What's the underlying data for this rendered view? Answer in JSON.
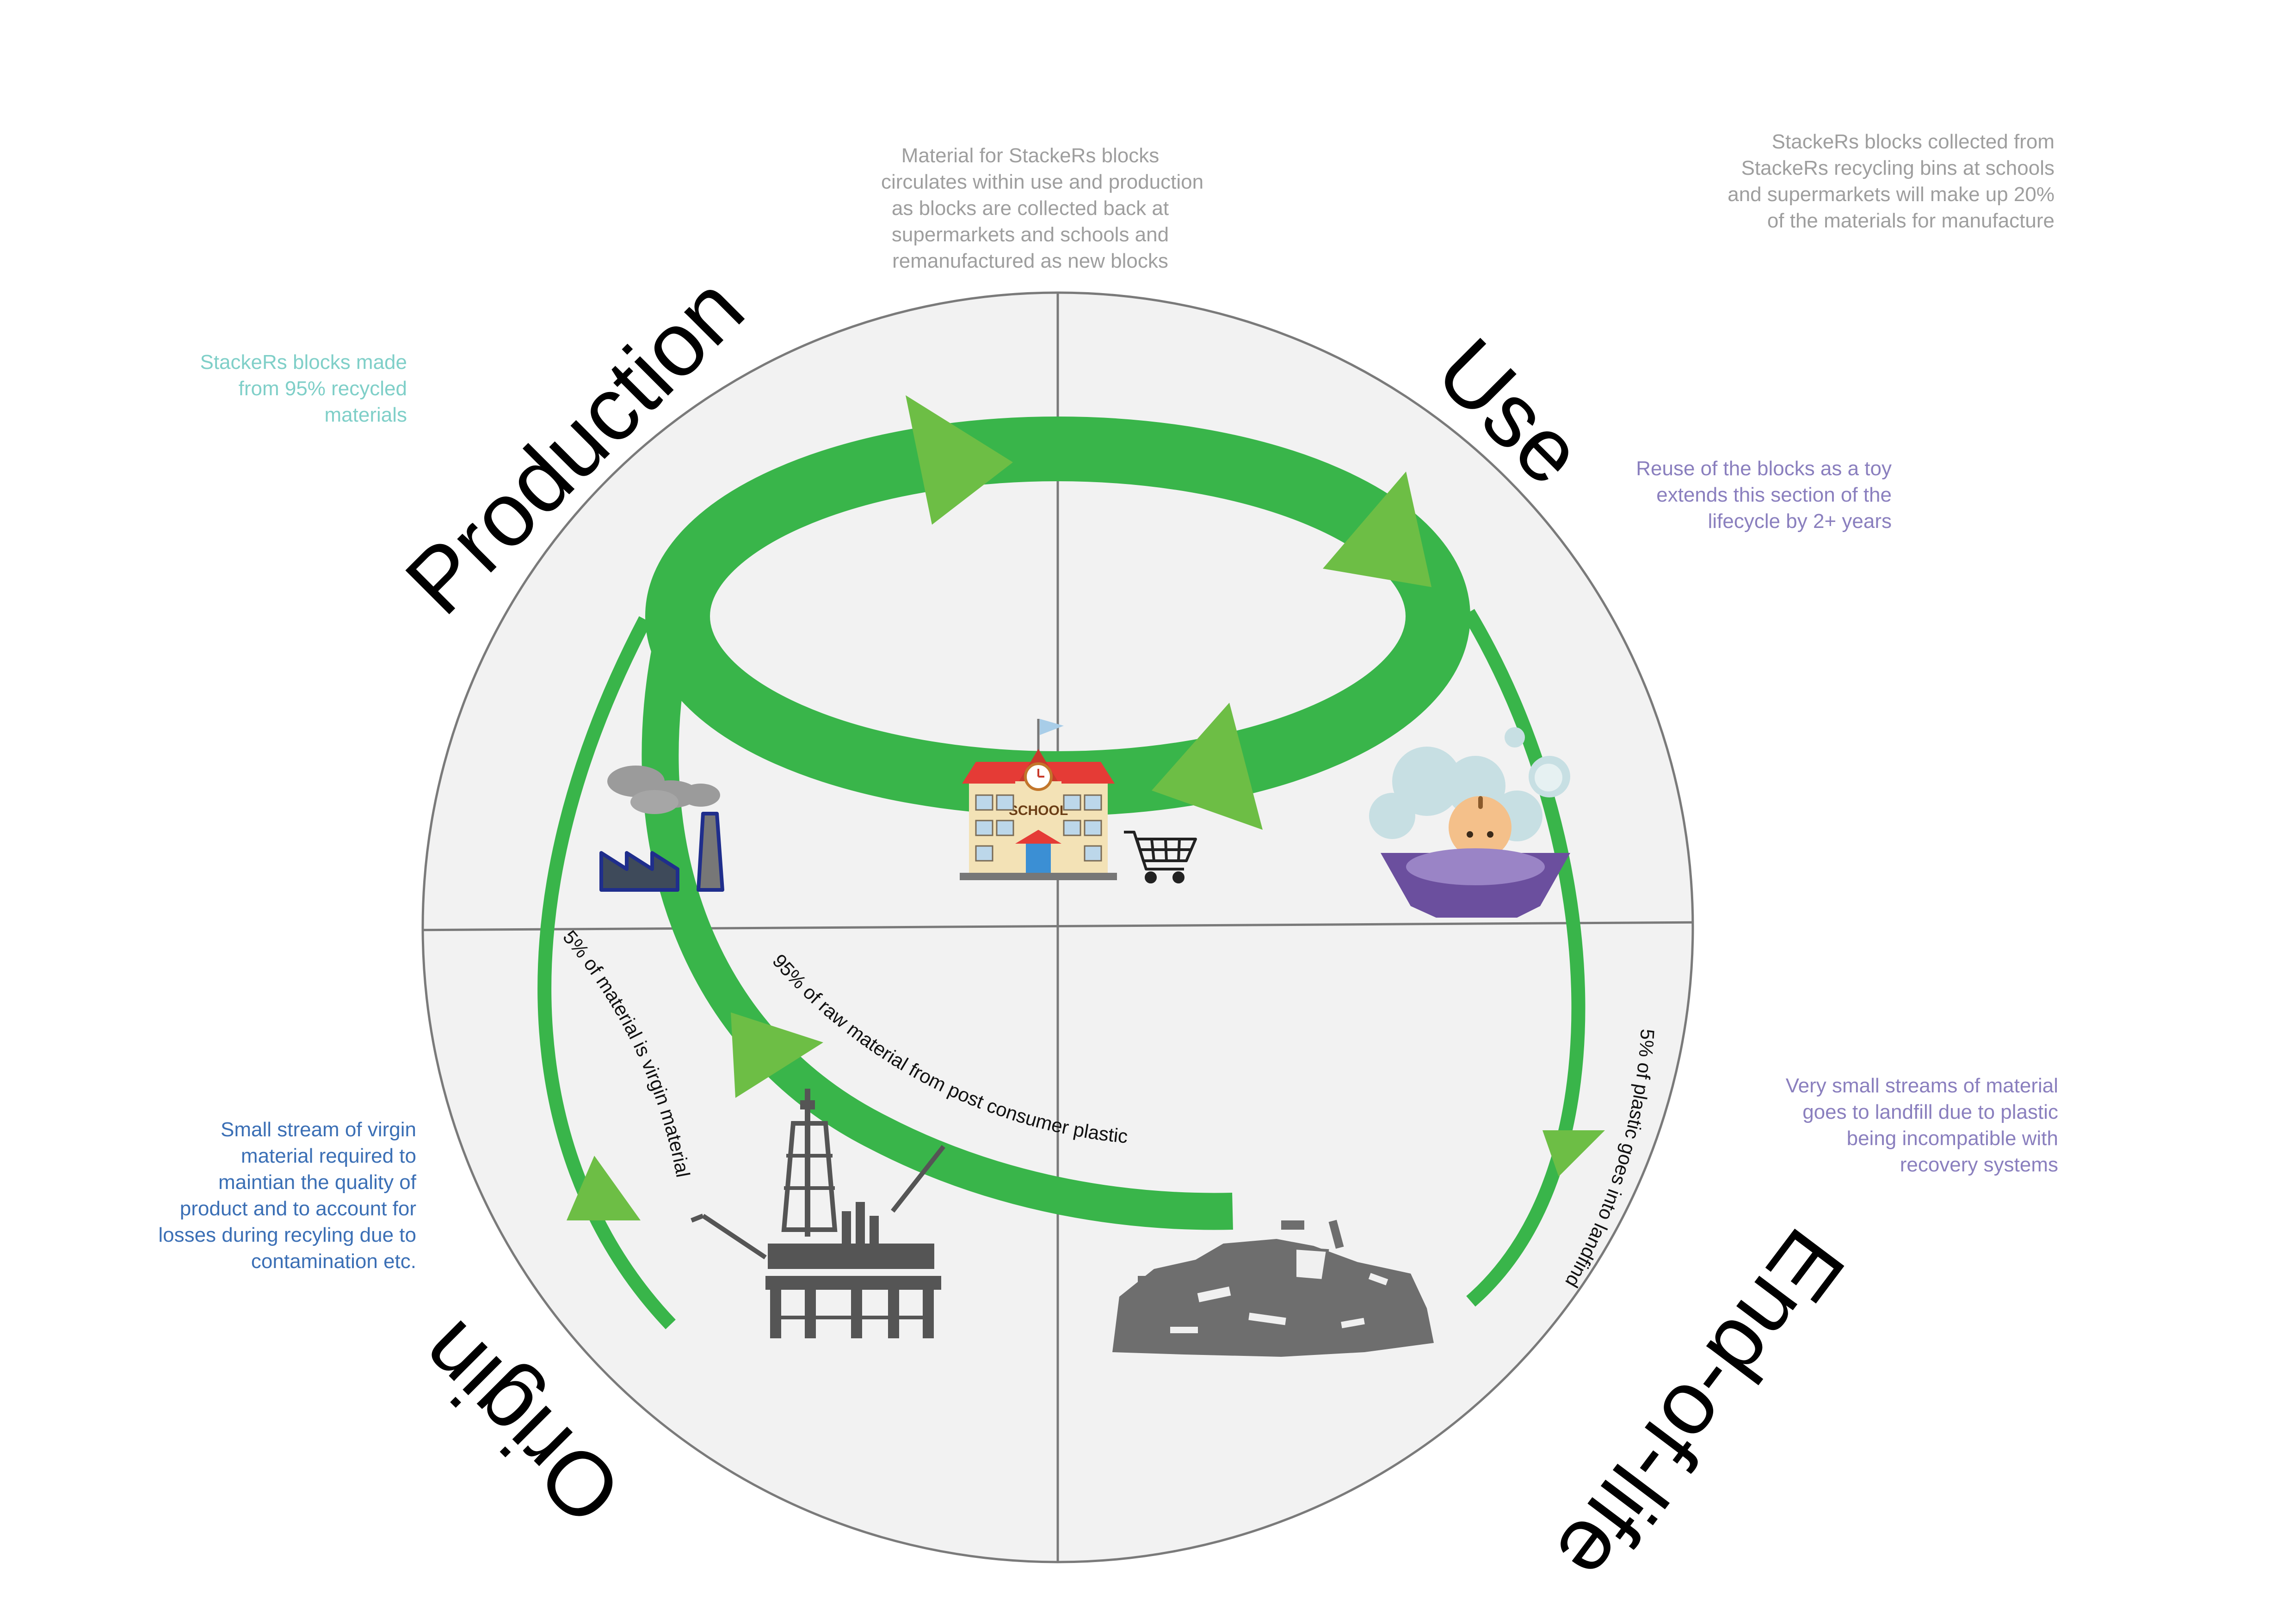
{
  "stages": {
    "production": "Production",
    "use": "Use",
    "end_of_life": "End-of-life",
    "origin": "Origin"
  },
  "notes": {
    "center_top": [
      "Material for StackeRs blocks",
      "circulates within use and production",
      "as blocks are collected back at",
      "supermarkets and schools and",
      "remanufactured as new blocks"
    ],
    "top_right": [
      "StackeRs blocks collected from",
      "StackeRs recycling bins at schools",
      "and supermarkets will make up 20%",
      "of the materials for manufacture"
    ],
    "production": [
      "StackeRs blocks made",
      "from 95% recycled",
      "materials"
    ],
    "use": [
      "Reuse of the blocks as a toy",
      "extends this section of the",
      "lifecycle by 2+ years"
    ],
    "end_of_life": [
      "Very small streams of material",
      "goes to landfill due to plastic",
      "being incompatible with",
      "recovery systems"
    ],
    "origin": [
      "Small stream of virgin",
      "material required to",
      "maintian the quality of",
      "product and to account for",
      "losses during recyling due to",
      "contamination etc."
    ]
  },
  "flow_labels": {
    "virgin": "5% of material is virgin material",
    "recycled": "95% of raw material from post consumer plastic",
    "landfill": "5% of plastic goes into landfind"
  },
  "icons": {
    "school_sign": "SCHOOL",
    "names": [
      "factory-icon",
      "school-icon",
      "shopping-cart-icon",
      "baby-bath-icon",
      "oil-rig-icon",
      "landfill-icon"
    ]
  },
  "colors": {
    "flow_green": "#39b54a",
    "arrowhead_green": "#6dbe45",
    "quadrant_fill": "#f2f2f2",
    "quadrant_line": "#7a7a7a",
    "teal_note": "#7fcfc8",
    "purple_note": "#8a7fbe",
    "blue_note": "#3b6fb5",
    "gray_note": "#9e9e9e"
  }
}
